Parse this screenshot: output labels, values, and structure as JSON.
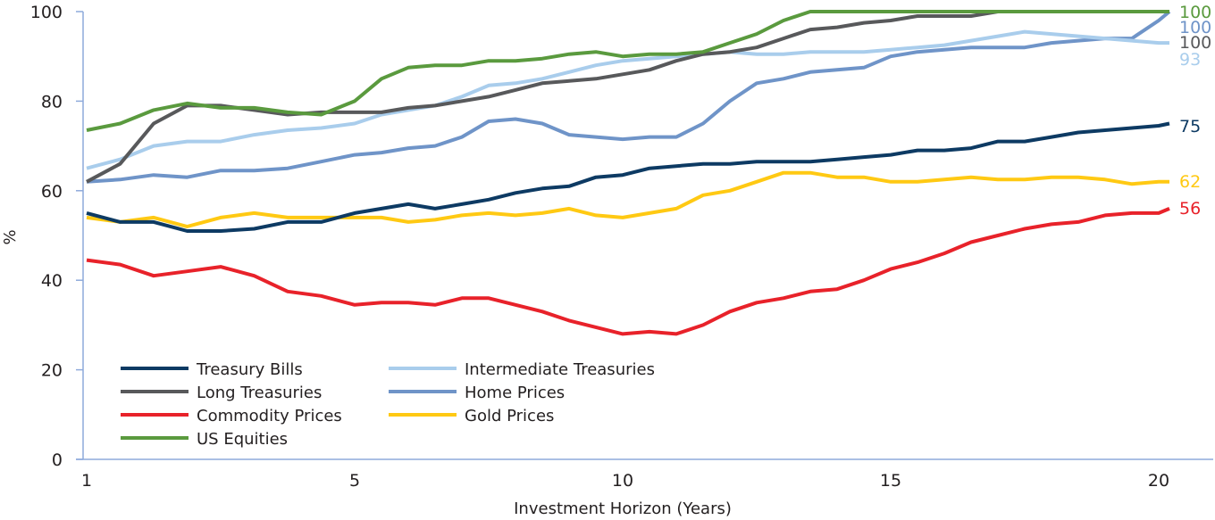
{
  "chart_data": {
    "type": "line",
    "title": "",
    "xlabel": "Investment Horizon (Years)",
    "ylabel": "%",
    "ylim": [
      0,
      100
    ],
    "yticks": [
      0,
      20,
      40,
      60,
      80,
      100
    ],
    "xticks": [
      1,
      5,
      10,
      15,
      20
    ],
    "grid": false,
    "legend_placement": "bottom-left",
    "x": [
      1,
      1.5,
      2,
      2.5,
      3,
      3.5,
      4,
      4.5,
      5,
      5.5,
      6,
      6.5,
      7,
      7.5,
      8,
      8.5,
      9,
      9.5,
      10,
      10.5,
      11,
      11.5,
      12,
      12.5,
      13,
      13.5,
      14,
      14.5,
      15,
      15.5,
      16,
      16.5,
      17,
      17.5,
      18,
      18.5,
      19,
      19.5,
      20,
      20.2
    ],
    "series": [
      {
        "name": "Treasury Bills",
        "color": "#0d3a63",
        "end_label": "75",
        "values": [
          55,
          53,
          53,
          51,
          51,
          51.5,
          53,
          53,
          55,
          56,
          57,
          56,
          57,
          58,
          59.5,
          60.5,
          61,
          63,
          63.5,
          65,
          65.5,
          66,
          66,
          66.5,
          66.5,
          66.5,
          67,
          67.5,
          68,
          69,
          69,
          69.5,
          71,
          71,
          72,
          73,
          73.5,
          74,
          74.5,
          75
        ]
      },
      {
        "name": "Intermediate Treasuries",
        "color": "#a9cdec",
        "end_label": "93",
        "values": [
          65,
          67,
          70,
          71,
          71,
          72.5,
          73.5,
          74,
          75,
          77,
          78,
          79,
          81,
          83.5,
          84,
          85,
          86.5,
          88,
          89,
          89.5,
          90,
          90.5,
          91,
          90.5,
          90.5,
          91,
          91,
          91,
          91.5,
          92,
          92.5,
          93.5,
          94.5,
          95.5,
          95,
          94.5,
          94,
          93.5,
          93,
          93
        ]
      },
      {
        "name": "Long Treasuries",
        "color": "#58595b",
        "end_label": "100",
        "values": [
          62,
          66,
          75,
          79,
          79,
          78,
          77,
          77.5,
          77.5,
          77.5,
          78.5,
          79,
          80,
          81,
          82.5,
          84,
          84.5,
          85,
          86,
          87,
          89,
          90.5,
          91,
          92,
          94,
          96,
          96.5,
          97.5,
          98,
          99,
          99,
          99,
          100,
          100,
          100,
          100,
          100,
          100,
          100,
          100
        ]
      },
      {
        "name": "Home Prices",
        "color": "#6f94c8",
        "end_label": "100",
        "values": [
          62,
          62.5,
          63.5,
          63,
          64.5,
          64.5,
          65,
          66.5,
          68,
          68.5,
          69.5,
          70,
          72,
          75.5,
          76,
          75,
          72.5,
          72,
          71.5,
          72,
          72,
          75,
          80,
          84,
          85,
          86.5,
          87,
          87.5,
          90,
          91,
          91.5,
          92,
          92,
          92,
          93,
          93.5,
          94,
          94,
          98,
          100
        ]
      },
      {
        "name": "Commodity Prices",
        "color": "#e8222a",
        "end_label": "56",
        "values": [
          44.5,
          43.5,
          41,
          42,
          43,
          41,
          37.5,
          36.5,
          34.5,
          35,
          35,
          34.5,
          36,
          36,
          34.5,
          33,
          31,
          29.5,
          28,
          28.5,
          28,
          30,
          33,
          35,
          36,
          37.5,
          38,
          40,
          42.5,
          44,
          46,
          48.5,
          50,
          51.5,
          52.5,
          53,
          54.5,
          55,
          55,
          56
        ]
      },
      {
        "name": "Gold Prices",
        "color": "#ffc913",
        "end_label": "62",
        "values": [
          54,
          53,
          54,
          52,
          54,
          55,
          54,
          54,
          54,
          54,
          53,
          53.5,
          54.5,
          55,
          54.5,
          55,
          56,
          54.5,
          54,
          55,
          56,
          59,
          60,
          62,
          64,
          64,
          63,
          63,
          62,
          62,
          62.5,
          63,
          62.5,
          62.5,
          63,
          63,
          62.5,
          61.5,
          62,
          62
        ]
      },
      {
        "name": "US Equities",
        "color": "#5a9a3e",
        "end_label": "100",
        "values": [
          73.5,
          75,
          78,
          79.5,
          78.5,
          78.5,
          77.5,
          77,
          80,
          85,
          87.5,
          88,
          88,
          89,
          89,
          89.5,
          90.5,
          91,
          90,
          90.5,
          90.5,
          91,
          93,
          95,
          98,
          100,
          100,
          100,
          100,
          100,
          100,
          100,
          100,
          100,
          100,
          100,
          100,
          100,
          100,
          100
        ]
      }
    ],
    "axis_color": "#8eaadb"
  }
}
